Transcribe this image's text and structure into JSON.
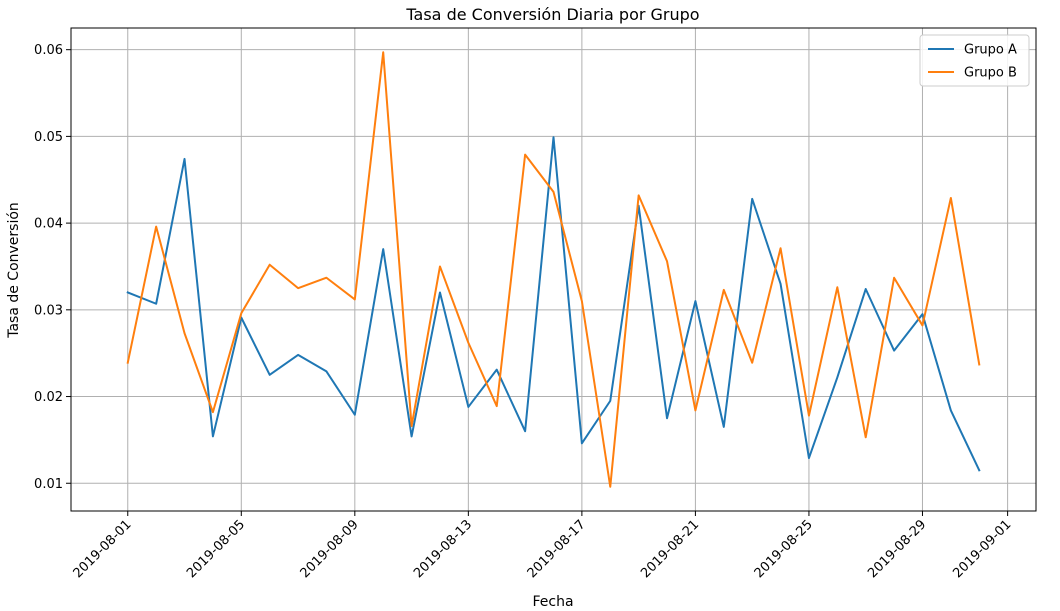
{
  "chart_data": {
    "type": "line",
    "title": "Tasa de Conversión Diaria por Grupo",
    "xlabel": "Fecha",
    "ylabel": "Tasa de Conversión",
    "x": [
      "2019-08-01",
      "2019-08-02",
      "2019-08-03",
      "2019-08-04",
      "2019-08-05",
      "2019-08-06",
      "2019-08-07",
      "2019-08-08",
      "2019-08-09",
      "2019-08-10",
      "2019-08-11",
      "2019-08-12",
      "2019-08-13",
      "2019-08-14",
      "2019-08-15",
      "2019-08-16",
      "2019-08-17",
      "2019-08-18",
      "2019-08-19",
      "2019-08-20",
      "2019-08-21",
      "2019-08-22",
      "2019-08-23",
      "2019-08-24",
      "2019-08-25",
      "2019-08-26",
      "2019-08-27",
      "2019-08-28",
      "2019-08-29",
      "2019-08-30",
      "2019-08-31"
    ],
    "xlim": [
      "2019-07-30",
      "2019-09-02"
    ],
    "ylim": [
      0.0068,
      0.0625
    ],
    "x_ticks": [
      "2019-08-01",
      "2019-08-05",
      "2019-08-09",
      "2019-08-13",
      "2019-08-17",
      "2019-08-21",
      "2019-08-25",
      "2019-08-29",
      "2019-09-01"
    ],
    "y_ticks": [
      0.01,
      0.02,
      0.03,
      0.04,
      0.05,
      0.06
    ],
    "y_tick_labels": [
      "0.01",
      "0.02",
      "0.03",
      "0.04",
      "0.05",
      "0.06"
    ],
    "grid": true,
    "legend": "top-right",
    "series": [
      {
        "name": "Grupo A",
        "color": "#1f77b4",
        "values": [
          0.032,
          0.0307,
          0.0474,
          0.0154,
          0.0291,
          0.0225,
          0.0248,
          0.0229,
          0.0179,
          0.037,
          0.0154,
          0.032,
          0.0188,
          0.0231,
          0.016,
          0.0499,
          0.0146,
          0.0195,
          0.042,
          0.0175,
          0.031,
          0.0165,
          0.0428,
          0.033,
          0.0129,
          0.0222,
          0.0324,
          0.0253,
          0.0295,
          0.0184,
          0.0115
        ]
      },
      {
        "name": "Grupo B",
        "color": "#ff7f0e",
        "values": [
          0.0239,
          0.0396,
          0.0273,
          0.0182,
          0.0296,
          0.0352,
          0.0325,
          0.0337,
          0.0312,
          0.0597,
          0.0166,
          0.035,
          0.0262,
          0.0189,
          0.0479,
          0.0436,
          0.031,
          0.0096,
          0.0432,
          0.0356,
          0.0184,
          0.0323,
          0.0239,
          0.0371,
          0.0178,
          0.0326,
          0.0153,
          0.0337,
          0.0282,
          0.0429,
          0.0237
        ]
      }
    ]
  }
}
